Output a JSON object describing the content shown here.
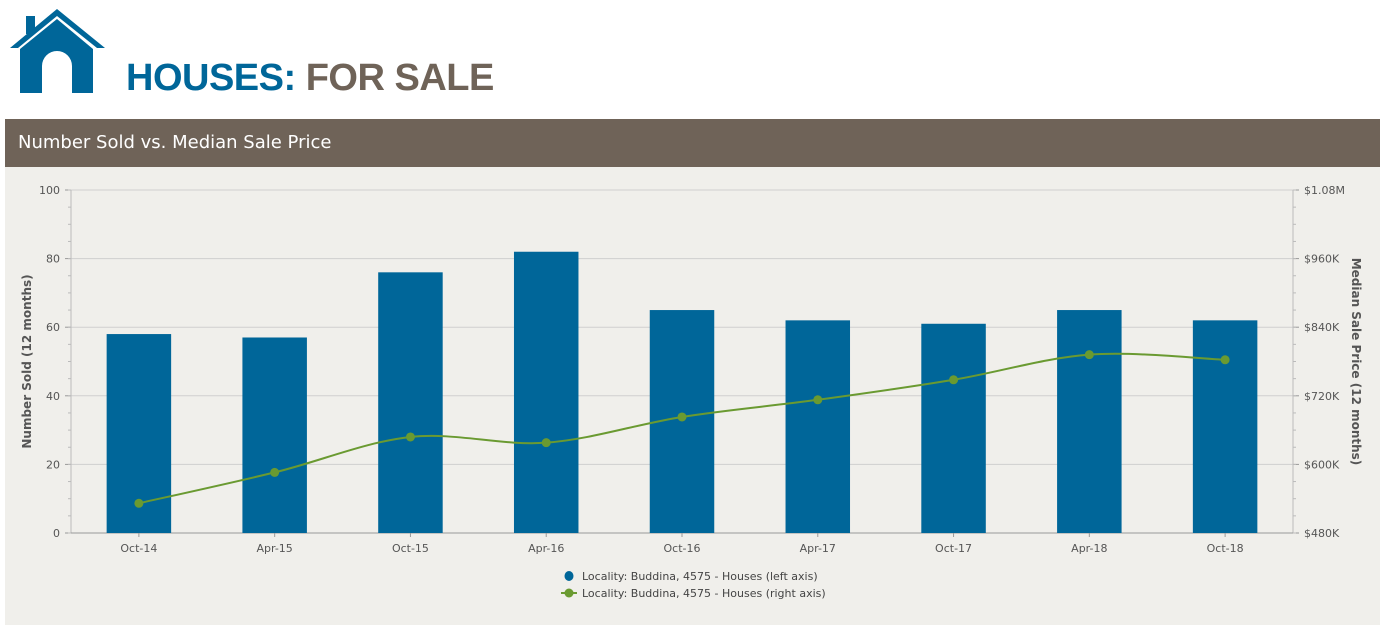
{
  "header": {
    "title_part1": "HOUSES:",
    "title_part2": "FOR SALE"
  },
  "panel": {
    "title": "Number Sold vs. Median Sale Price"
  },
  "colors": {
    "bar": "#006699",
    "line": "#6a9a31",
    "header_bg": "#6f6358",
    "title_blue": "#006699",
    "title_brown": "#6f6358",
    "panel_bg": "#f0efeb"
  },
  "icons": [
    "house-icon"
  ],
  "chart_data": {
    "type": "bar",
    "categories": [
      "Oct-14",
      "Apr-15",
      "Oct-15",
      "Apr-16",
      "Oct-16",
      "Apr-17",
      "Oct-17",
      "Apr-18",
      "Oct-18"
    ],
    "series": [
      {
        "name": "Locality: Buddina, 4575 - Houses (left axis)",
        "type": "bar",
        "axis": "left",
        "values": [
          58,
          57,
          76,
          82,
          65,
          62,
          61,
          65,
          62
        ]
      },
      {
        "name": "Locality: Buddina, 4575 - Houses (right axis)",
        "type": "line",
        "axis": "right",
        "values": [
          532000,
          586000,
          648000,
          638000,
          683000,
          713000,
          748000,
          792000,
          783000
        ]
      }
    ],
    "y_left": {
      "label": "Number Sold (12 months)",
      "ylim": [
        0,
        100
      ],
      "ticks": [
        0,
        20,
        40,
        60,
        80,
        100
      ],
      "tick_labels": [
        "0",
        "20",
        "40",
        "60",
        "80",
        "100"
      ]
    },
    "y_right": {
      "label": "Median Sale Price (12 months)",
      "ylim": [
        480000,
        1080000
      ],
      "ticks": [
        480000,
        600000,
        720000,
        840000,
        960000,
        1080000
      ],
      "tick_labels": [
        "$480K",
        "$600K",
        "$720K",
        "$840K",
        "$960K",
        "$1.08M"
      ]
    },
    "grid": true,
    "legend": "bottom-center"
  }
}
